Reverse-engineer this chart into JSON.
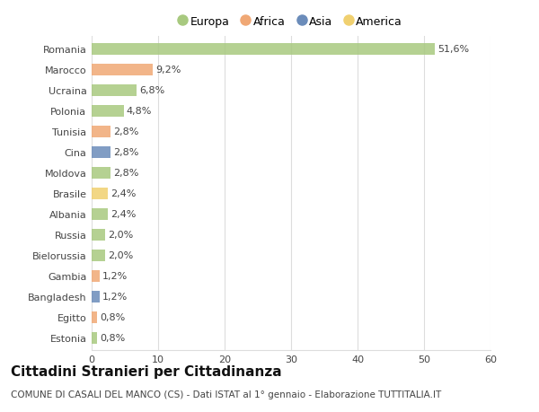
{
  "categories": [
    "Romania",
    "Marocco",
    "Ucraina",
    "Polonia",
    "Tunisia",
    "Cina",
    "Moldova",
    "Brasile",
    "Albania",
    "Russia",
    "Bielorussia",
    "Gambia",
    "Bangladesh",
    "Egitto",
    "Estonia"
  ],
  "values": [
    51.6,
    9.2,
    6.8,
    4.8,
    2.8,
    2.8,
    2.8,
    2.4,
    2.4,
    2.0,
    2.0,
    1.2,
    1.2,
    0.8,
    0.8
  ],
  "labels": [
    "51,6%",
    "9,2%",
    "6,8%",
    "4,8%",
    "2,8%",
    "2,8%",
    "2,8%",
    "2,4%",
    "2,4%",
    "2,0%",
    "2,0%",
    "1,2%",
    "1,2%",
    "0,8%",
    "0,8%"
  ],
  "continents": [
    "Europa",
    "Africa",
    "Europa",
    "Europa",
    "Africa",
    "Asia",
    "Europa",
    "America",
    "Europa",
    "Europa",
    "Europa",
    "Africa",
    "Asia",
    "Africa",
    "Europa"
  ],
  "continent_colors": {
    "Europa": "#a8c97f",
    "Africa": "#f0a875",
    "Asia": "#6b8cba",
    "America": "#f0d070"
  },
  "legend_order": [
    "Europa",
    "Africa",
    "Asia",
    "America"
  ],
  "title": "Cittadini Stranieri per Cittadinanza",
  "subtitle": "COMUNE DI CASALI DEL MANCO (CS) - Dati ISTAT al 1° gennaio - Elaborazione TUTTITALIA.IT",
  "xlim": [
    0,
    60
  ],
  "xticks": [
    0,
    10,
    20,
    30,
    40,
    50,
    60
  ],
  "background_color": "#ffffff",
  "grid_color": "#dddddd",
  "bar_height": 0.55,
  "label_fontsize": 8,
  "tick_fontsize": 8,
  "title_fontsize": 11,
  "subtitle_fontsize": 7.5
}
